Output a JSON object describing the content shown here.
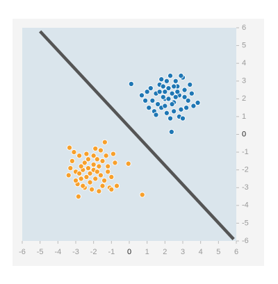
{
  "chart_data": {
    "type": "scatter",
    "xlim": [
      -6,
      6
    ],
    "ylim": [
      -6,
      6
    ],
    "xticks": [
      -6,
      -5,
      -4,
      -3,
      -2,
      -1,
      0,
      1,
      2,
      3,
      4,
      5,
      6
    ],
    "yticks": [
      -6,
      -5,
      -4,
      -3,
      -2,
      -1,
      0,
      1,
      2,
      3,
      4,
      5,
      6
    ],
    "series": [
      {
        "color": "#1f77b4",
        "x": [
          0.11,
          2.37,
          3.84,
          2.0,
          1.5,
          2.5,
          1.8,
          2.2,
          2.8,
          1.3,
          2.6,
          3.1,
          1.7,
          2.1,
          2.9,
          1.0,
          3.3,
          2.4,
          1.9,
          2.7,
          1.6,
          3.0,
          2.3,
          1.2,
          2.0,
          2.5,
          3.5,
          1.4,
          2.8,
          2.2,
          1.7,
          3.2,
          2.6,
          1.9,
          2.4,
          0.7,
          3.0,
          2.1,
          1.5,
          3.4,
          2.9,
          1.8,
          2.3,
          0.9,
          3.6,
          2.7,
          1.1,
          2.0,
          2.5,
          3.1
        ],
        "values": [
          2.84,
          0.14,
          1.78,
          2.0,
          2.3,
          1.8,
          1.5,
          2.6,
          2.2,
          1.9,
          3.0,
          2.5,
          2.8,
          1.2,
          1.4,
          2.4,
          1.9,
          2.3,
          2.1,
          2.7,
          1.7,
          3.2,
          3.3,
          2.6,
          1.6,
          1.3,
          2.3,
          1.3,
          1.0,
          2.0,
          2.4,
          1.5,
          2.1,
          2.7,
          1.7,
          2.2,
          0.9,
          3.0,
          1.1,
          2.8,
          3.3,
          3.1,
          0.9,
          1.9,
          1.6,
          2.4,
          1.5,
          2.4,
          2.7,
          2.1
        ]
      },
      {
        "color": "#f7a02c",
        "x": [
          0.73,
          -0.05,
          -3.35,
          -2.85,
          -1.37,
          -2.0,
          -2.5,
          -1.6,
          -2.2,
          -1.8,
          -3.0,
          -1.2,
          -2.7,
          -1.5,
          -2.4,
          -1.0,
          -3.2,
          -2.1,
          -1.7,
          -2.6,
          -1.3,
          -2.9,
          -1.9,
          -2.3,
          -0.8,
          -3.4,
          -1.1,
          -2.8,
          -1.6,
          -2.0,
          -1.4,
          -2.5,
          -3.1,
          -1.8,
          -0.7,
          -2.2,
          -2.7,
          -1.5,
          -3.0,
          -1.9,
          -2.4,
          -1.2,
          -0.9,
          -2.6,
          -3.3,
          -2.0,
          -1.7,
          -2.3,
          -1.0,
          -2.8
        ],
        "values": [
          -3.4,
          -1.65,
          -0.75,
          -3.5,
          -0.44,
          -2.0,
          -1.6,
          -2.3,
          -2.7,
          -1.4,
          -2.1,
          -1.8,
          -2.5,
          -2.9,
          -1.1,
          -2.4,
          -1.5,
          -3.1,
          -1.8,
          -2.0,
          -1.2,
          -2.8,
          -2.5,
          -1.4,
          -1.6,
          -2.3,
          -3.0,
          -1.2,
          -0.9,
          -1.7,
          -2.6,
          -3.0,
          -1.0,
          -2.1,
          -2.9,
          -2.2,
          -1.8,
          -1.5,
          -2.6,
          -0.8,
          -2.4,
          -2.1,
          -1.1,
          -2.9,
          -1.9,
          -1.2,
          -3.2,
          -1.9,
          -3.1,
          -2.2
        ]
      }
    ],
    "lines": [
      {
        "color": "#555555",
        "x": [
          -5.0,
          5.85
        ],
        "values": [
          5.8,
          -5.9
        ]
      }
    ]
  }
}
